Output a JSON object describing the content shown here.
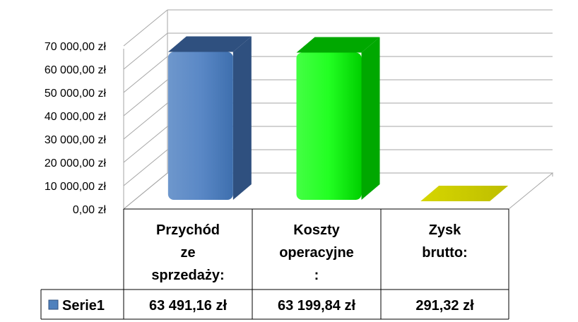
{
  "chart_data": {
    "type": "bar",
    "categories": [
      [
        "Przychód",
        "ze",
        "sprzedaży:"
      ],
      [
        "Koszty",
        "operacyjne",
        ":"
      ],
      [
        "Zysk",
        "brutto:"
      ]
    ],
    "series": [
      {
        "name": "Serie1",
        "values": [
          63491.16,
          63199.84,
          291.32
        ],
        "value_labels": [
          "63 491,16 zł",
          "63 199,84 zł",
          "291,32 zł"
        ],
        "colors": [
          "#4F81BD",
          "#00FF00",
          "#CCCC00"
        ],
        "side_colors": [
          "#2F507F",
          "#00A800",
          "#999900"
        ],
        "legend_color": "#4F81BD"
      }
    ],
    "y_ticks": [
      "0,00 zł",
      "10 000,00 zł",
      "20 000,00 zł",
      "30 000,00 zł",
      "40 000,00 zł",
      "50 000,00 zł",
      "60 000,00 zł",
      "70 000,00 zł"
    ],
    "ylim": [
      0,
      70000
    ],
    "grid": true,
    "legend": "data-table",
    "title": "",
    "xlabel": "",
    "ylabel": ""
  }
}
